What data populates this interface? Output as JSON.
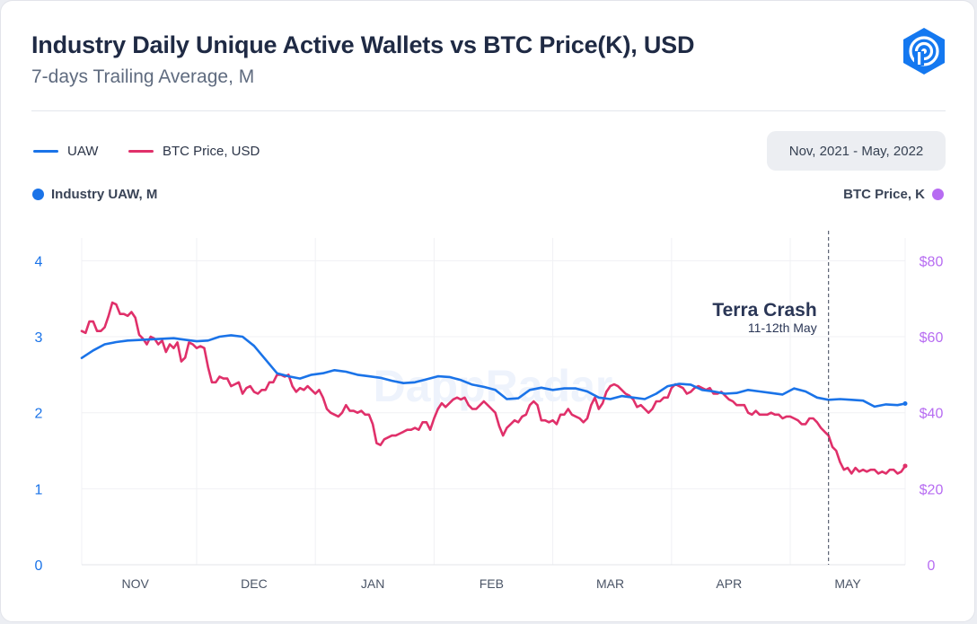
{
  "header": {
    "title": "Industry Daily Unique Active Wallets vs BTC Price(K), USD",
    "subtitle": "7-days Trailing Average, M",
    "date_range": "Nov, 2021 - May, 2022",
    "logo_icon": "dappradar-logo-icon",
    "watermark": "DappRadar"
  },
  "legend": [
    {
      "label": "UAW",
      "color": "#1a73e8"
    },
    {
      "label": "BTC Price, USD",
      "color": "#e0306a"
    }
  ],
  "axis_titles": {
    "left": "Industry UAW, M",
    "left_color": "#1a73e8",
    "right": "BTC Price, K",
    "right_color": "#b76cf2"
  },
  "annotation": {
    "title": "Terra Crash",
    "subtitle": "11-12th May",
    "day": 195
  },
  "chart_data": {
    "type": "line",
    "x_domain_days": [
      0,
      215
    ],
    "x_start_date": "2021-10-18",
    "x_tick_labels": [
      {
        "label": "NOV",
        "day": 14
      },
      {
        "label": "DEC",
        "day": 45
      },
      {
        "label": "JAN",
        "day": 76
      },
      {
        "label": "FEB",
        "day": 107
      },
      {
        "label": "MAR",
        "day": 138
      },
      {
        "label": "APR",
        "day": 169
      },
      {
        "label": "MAY",
        "day": 200
      }
    ],
    "y_left": {
      "label": "Industry UAW, M",
      "min": 0,
      "max": 4.3,
      "ticks": [
        "0",
        "1",
        "2",
        "3",
        "4"
      ],
      "tick_values": [
        0,
        1,
        2,
        3,
        4
      ]
    },
    "y_right": {
      "label": "BTC Price, K",
      "min": 0,
      "max": 86,
      "ticks": [
        "0",
        "$20",
        "$40",
        "$60",
        "$80"
      ],
      "tick_values": [
        0,
        20,
        40,
        60,
        80
      ]
    },
    "series": [
      {
        "name": "UAW",
        "axis": "left",
        "color": "#1a73e8",
        "points": [
          [
            0,
            2.72
          ],
          [
            3,
            2.82
          ],
          [
            6,
            2.9
          ],
          [
            9,
            2.93
          ],
          [
            12,
            2.95
          ],
          [
            16,
            2.96
          ],
          [
            20,
            2.97
          ],
          [
            24,
            2.98
          ],
          [
            27,
            2.96
          ],
          [
            30,
            2.94
          ],
          [
            33,
            2.95
          ],
          [
            36,
            3.0
          ],
          [
            39,
            3.02
          ],
          [
            42,
            3.0
          ],
          [
            45,
            2.88
          ],
          [
            48,
            2.7
          ],
          [
            51,
            2.52
          ],
          [
            54,
            2.48
          ],
          [
            57,
            2.45
          ],
          [
            60,
            2.5
          ],
          [
            63,
            2.52
          ],
          [
            66,
            2.56
          ],
          [
            69,
            2.54
          ],
          [
            72,
            2.5
          ],
          [
            75,
            2.48
          ],
          [
            78,
            2.46
          ],
          [
            81,
            2.42
          ],
          [
            84,
            2.39
          ],
          [
            87,
            2.4
          ],
          [
            90,
            2.44
          ],
          [
            93,
            2.48
          ],
          [
            96,
            2.47
          ],
          [
            99,
            2.43
          ],
          [
            102,
            2.37
          ],
          [
            105,
            2.34
          ],
          [
            108,
            2.3
          ],
          [
            111,
            2.18
          ],
          [
            114,
            2.19
          ],
          [
            117,
            2.3
          ],
          [
            120,
            2.33
          ],
          [
            123,
            2.3
          ],
          [
            126,
            2.32
          ],
          [
            129,
            2.32
          ],
          [
            132,
            2.28
          ],
          [
            135,
            2.2
          ],
          [
            138,
            2.18
          ],
          [
            141,
            2.22
          ],
          [
            144,
            2.2
          ],
          [
            147,
            2.18
          ],
          [
            150,
            2.25
          ],
          [
            153,
            2.35
          ],
          [
            156,
            2.38
          ],
          [
            159,
            2.37
          ],
          [
            162,
            2.3
          ],
          [
            165,
            2.28
          ],
          [
            168,
            2.25
          ],
          [
            171,
            2.26
          ],
          [
            174,
            2.3
          ],
          [
            177,
            2.28
          ],
          [
            180,
            2.26
          ],
          [
            183,
            2.24
          ],
          [
            186,
            2.32
          ],
          [
            189,
            2.28
          ],
          [
            192,
            2.2
          ],
          [
            195,
            2.17
          ],
          [
            198,
            2.18
          ],
          [
            201,
            2.17
          ],
          [
            204,
            2.16
          ],
          [
            207,
            2.08
          ],
          [
            210,
            2.11
          ],
          [
            213,
            2.1
          ],
          [
            215,
            2.12
          ]
        ]
      },
      {
        "name": "BTC Price, USD",
        "axis": "right",
        "color": "#e0306a",
        "points": [
          [
            0,
            61.5
          ],
          [
            1,
            61
          ],
          [
            2,
            64
          ],
          [
            3,
            64
          ],
          [
            4,
            61.5
          ],
          [
            5,
            61.5
          ],
          [
            6,
            62.5
          ],
          [
            7,
            65.5
          ],
          [
            8,
            69
          ],
          [
            9,
            68.5
          ],
          [
            10,
            66
          ],
          [
            11,
            66
          ],
          [
            12,
            65.5
          ],
          [
            13,
            66.5
          ],
          [
            14,
            65
          ],
          [
            15,
            60.5
          ],
          [
            16,
            59.5
          ],
          [
            17,
            58
          ],
          [
            18,
            60
          ],
          [
            19,
            59.5
          ],
          [
            20,
            58
          ],
          [
            21,
            59
          ],
          [
            22,
            56
          ],
          [
            23,
            58
          ],
          [
            24,
            57
          ],
          [
            25,
            58.5
          ],
          [
            26,
            53.5
          ],
          [
            27,
            54.5
          ],
          [
            28,
            58.5
          ],
          [
            29,
            58
          ],
          [
            30,
            57
          ],
          [
            31,
            57.5
          ],
          [
            32,
            57
          ],
          [
            33,
            52
          ],
          [
            34,
            48
          ],
          [
            35,
            48
          ],
          [
            36,
            49.5
          ],
          [
            37,
            49
          ],
          [
            38,
            49
          ],
          [
            39,
            47
          ],
          [
            40,
            47.5
          ],
          [
            41,
            48
          ],
          [
            42,
            45
          ],
          [
            43,
            46.5
          ],
          [
            44,
            47
          ],
          [
            45,
            45.5
          ],
          [
            46,
            45
          ],
          [
            47,
            46
          ],
          [
            48,
            46
          ],
          [
            49,
            48
          ],
          [
            50,
            48
          ],
          [
            51,
            50
          ],
          [
            52,
            50
          ],
          [
            53,
            49.5
          ],
          [
            54,
            50
          ],
          [
            55,
            47
          ],
          [
            56,
            45.5
          ],
          [
            57,
            46.5
          ],
          [
            58,
            46
          ],
          [
            59,
            47
          ],
          [
            60,
            46
          ],
          [
            61,
            45
          ],
          [
            62,
            46
          ],
          [
            63,
            44
          ],
          [
            64,
            41
          ],
          [
            65,
            40
          ],
          [
            66,
            39.5
          ],
          [
            67,
            39
          ],
          [
            68,
            40
          ],
          [
            69,
            42
          ],
          [
            70,
            40.5
          ],
          [
            71,
            40.5
          ],
          [
            72,
            40
          ],
          [
            73,
            40.5
          ],
          [
            74,
            39.5
          ],
          [
            75,
            39.5
          ],
          [
            76,
            37
          ],
          [
            77,
            32
          ],
          [
            78,
            31.5
          ],
          [
            79,
            33
          ],
          [
            80,
            33.5
          ],
          [
            81,
            34
          ],
          [
            82,
            34
          ],
          [
            83,
            34.5
          ],
          [
            84,
            35
          ],
          [
            85,
            35.5
          ],
          [
            86,
            35.5
          ],
          [
            87,
            36
          ],
          [
            88,
            35.5
          ],
          [
            89,
            37.5
          ],
          [
            90,
            37.5
          ],
          [
            91,
            35.5
          ],
          [
            92,
            38.5
          ],
          [
            93,
            41
          ],
          [
            94,
            42.5
          ],
          [
            95,
            41.5
          ],
          [
            96,
            42.5
          ],
          [
            97,
            43.5
          ],
          [
            98,
            44
          ],
          [
            99,
            43.5
          ],
          [
            100,
            44
          ],
          [
            101,
            42
          ],
          [
            102,
            41
          ],
          [
            103,
            41
          ],
          [
            104,
            42
          ],
          [
            105,
            43
          ],
          [
            106,
            42
          ],
          [
            107,
            41
          ],
          [
            108,
            40
          ],
          [
            109,
            36.5
          ],
          [
            110,
            34
          ],
          [
            111,
            36
          ],
          [
            112,
            37
          ],
          [
            113,
            38
          ],
          [
            114,
            37.5
          ],
          [
            115,
            39
          ],
          [
            116,
            39.5
          ],
          [
            117,
            42
          ],
          [
            118,
            43
          ],
          [
            119,
            42
          ],
          [
            120,
            38
          ],
          [
            121,
            38
          ],
          [
            122,
            37.5
          ],
          [
            123,
            38
          ],
          [
            124,
            37
          ],
          [
            125,
            39.5
          ],
          [
            126,
            39.5
          ],
          [
            127,
            41
          ],
          [
            128,
            39.5
          ],
          [
            129,
            39
          ],
          [
            130,
            38.5
          ],
          [
            131,
            37.5
          ],
          [
            132,
            38.5
          ],
          [
            133,
            42
          ],
          [
            134,
            44
          ],
          [
            135,
            41
          ],
          [
            136,
            42.5
          ],
          [
            137,
            45.5
          ],
          [
            138,
            47
          ],
          [
            139,
            47.5
          ],
          [
            140,
            47
          ],
          [
            141,
            46
          ],
          [
            142,
            45
          ],
          [
            143,
            44.5
          ],
          [
            144,
            43.5
          ],
          [
            145,
            41.5
          ],
          [
            146,
            42
          ],
          [
            147,
            41
          ],
          [
            148,
            40
          ],
          [
            149,
            41
          ],
          [
            150,
            43
          ],
          [
            151,
            43
          ],
          [
            152,
            44
          ],
          [
            153,
            44
          ],
          [
            154,
            46.5
          ],
          [
            155,
            47.5
          ],
          [
            156,
            47
          ],
          [
            157,
            46.5
          ],
          [
            158,
            45
          ],
          [
            159,
            45.5
          ],
          [
            160,
            46.5
          ],
          [
            161,
            47
          ],
          [
            162,
            46.5
          ],
          [
            163,
            46
          ],
          [
            164,
            46.5
          ],
          [
            165,
            45
          ],
          [
            166,
            45
          ],
          [
            167,
            45.5
          ],
          [
            168,
            44.5
          ],
          [
            169,
            43.5
          ],
          [
            170,
            43
          ],
          [
            171,
            42
          ],
          [
            172,
            42
          ],
          [
            173,
            42
          ],
          [
            174,
            40
          ],
          [
            175,
            39.5
          ],
          [
            176,
            40.5
          ],
          [
            177,
            39.5
          ],
          [
            178,
            39.5
          ],
          [
            179,
            39.5
          ],
          [
            180,
            40
          ],
          [
            181,
            39.5
          ],
          [
            182,
            39.5
          ],
          [
            183,
            38.5
          ],
          [
            184,
            39
          ],
          [
            185,
            39
          ],
          [
            186,
            38.5
          ],
          [
            187,
            38
          ],
          [
            188,
            37
          ],
          [
            189,
            37
          ],
          [
            190,
            38.5
          ],
          [
            191,
            38.5
          ],
          [
            192,
            37.5
          ],
          [
            193,
            36
          ],
          [
            194,
            35
          ],
          [
            195,
            34
          ],
          [
            196,
            31
          ],
          [
            197,
            30
          ],
          [
            198,
            27
          ],
          [
            199,
            25
          ],
          [
            200,
            25.5
          ],
          [
            201,
            24
          ],
          [
            202,
            25.5
          ],
          [
            203,
            24.5
          ],
          [
            204,
            25
          ],
          [
            205,
            24.5
          ],
          [
            206,
            25
          ],
          [
            207,
            25
          ],
          [
            208,
            24
          ],
          [
            209,
            24.5
          ],
          [
            210,
            24
          ],
          [
            211,
            25
          ],
          [
            212,
            25
          ],
          [
            213,
            24
          ],
          [
            214,
            24.5
          ],
          [
            215,
            26
          ]
        ]
      }
    ]
  }
}
